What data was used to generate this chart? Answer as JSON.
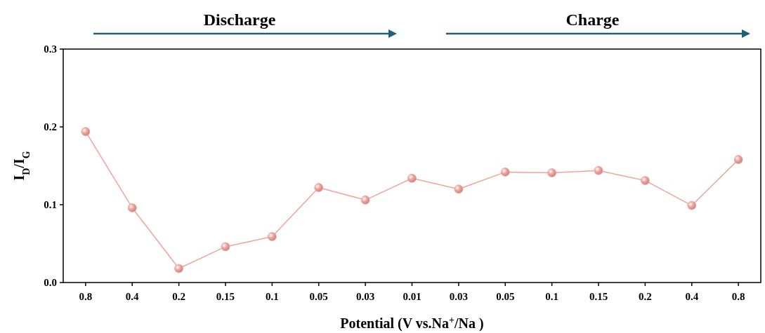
{
  "chart_data": {
    "type": "line",
    "xlabel": "Potential (V vs.Na$^{+}$/Na )",
    "ylabel": "I$_{D}$/I$_{G}$",
    "categories": [
      "0.8",
      "0.4",
      "0.2",
      "0.15",
      "0.1",
      "0.05",
      "0.03",
      "0.01",
      "0.03",
      "0.05",
      "0.1",
      "0.15",
      "0.2",
      "0.4",
      "0.8"
    ],
    "series": [
      {
        "color": "#f0a49c",
        "values": [
          0.194,
          0.096,
          0.018,
          0.046,
          0.059,
          0.122,
          0.106,
          0.134,
          0.12,
          0.142,
          0.141,
          0.144,
          0.131,
          0.099,
          0.158
        ]
      }
    ],
    "ylim": [
      0,
      0.3
    ],
    "yticks": [
      {
        "value": 0,
        "label": "0.0"
      },
      0.1,
      0.2,
      0.3
    ],
    "marker": "circle",
    "line_style": "solid",
    "grid": false,
    "annotations": [
      "Discharge",
      "Charge"
    ]
  }
}
